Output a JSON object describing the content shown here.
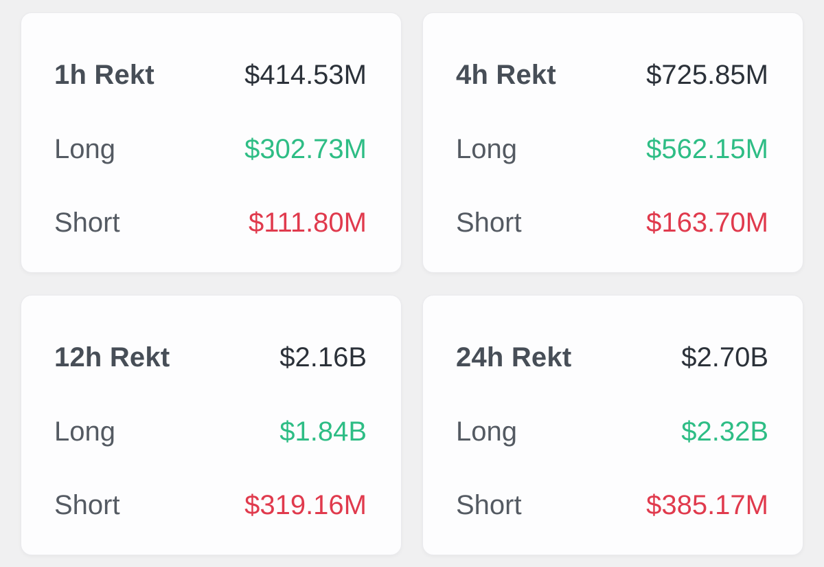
{
  "colors": {
    "page_bg": "#F0F0F1",
    "card_bg": "#FDFDFE",
    "card_border": "#EAEAED",
    "title": "#474E57",
    "total": "#2B3139",
    "label": "#545A62",
    "long": "#2EBD85",
    "short": "#E03A4D"
  },
  "labels": {
    "long": "Long",
    "short": "Short"
  },
  "cards": [
    {
      "title": "1h Rekt",
      "total": "$414.53M",
      "long_value": "$302.73M",
      "short_value": "$111.80M"
    },
    {
      "title": "4h Rekt",
      "total": "$725.85M",
      "long_value": "$562.15M",
      "short_value": "$163.70M"
    },
    {
      "title": "12h Rekt",
      "total": "$2.16B",
      "long_value": "$1.84B",
      "short_value": "$319.16M"
    },
    {
      "title": "24h Rekt",
      "total": "$2.70B",
      "long_value": "$2.32B",
      "short_value": "$385.17M"
    }
  ]
}
